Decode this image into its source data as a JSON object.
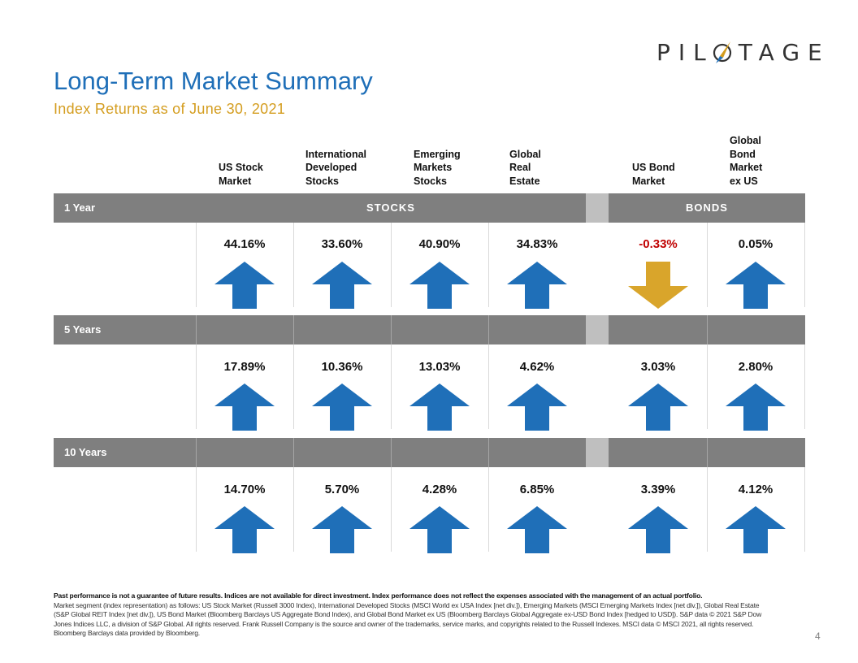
{
  "brand": {
    "logo_text": "PILOTAGE",
    "accent": "#1f6fb8",
    "gold": "#d49d1f"
  },
  "header": {
    "title": "Long-Term Market Summary",
    "subtitle": "Index Returns as of June 30, 2021"
  },
  "columns": [
    {
      "label": "US Stock\nMarket"
    },
    {
      "label": "International\nDeveloped\nStocks"
    },
    {
      "label": "Emerging\nMarkets\nStocks"
    },
    {
      "label": "Global\nReal\nEstate"
    },
    {
      "label": "US Bond\nMarket"
    },
    {
      "label": "Global\nBond\nMarket\nex US"
    }
  ],
  "groups": {
    "stocks": "STOCKS",
    "bonds": "BONDS"
  },
  "periods": [
    {
      "label": "1 Year",
      "values": [
        "44.16%",
        "33.60%",
        "40.90%",
        "34.83%",
        "-0.33%",
        "0.05%"
      ],
      "directions": [
        "up",
        "up",
        "up",
        "up",
        "down",
        "up"
      ]
    },
    {
      "label": "5 Years",
      "values": [
        "17.89%",
        "10.36%",
        "13.03%",
        "4.62%",
        "3.03%",
        "2.80%"
      ],
      "directions": [
        "up",
        "up",
        "up",
        "up",
        "up",
        "up"
      ]
    },
    {
      "label": "10 Years",
      "values": [
        "14.70%",
        "5.70%",
        "4.28%",
        "6.85%",
        "3.39%",
        "4.12%"
      ],
      "directions": [
        "up",
        "up",
        "up",
        "up",
        "up",
        "up"
      ]
    }
  ],
  "colors": {
    "up_arrow": "#1f6fb8",
    "down_arrow": "#d9a52b",
    "negative_text": "#c00000",
    "band": "#7f7f7f"
  },
  "footer": {
    "disclaimer": "Past performance is not a guarantee of future results. Indices are not available for direct investment. Index performance does not reflect the expenses associated with the management of an actual portfolio.",
    "notes": "Market segment (index representation) as follows: US Stock Market (Russell 3000 Index), International Developed Stocks (MSCI World ex USA Index [net div.]), Emerging Markets (MSCI Emerging Markets Index [net div.]), Global Real Estate (S&P Global REIT Index [net div.]), US Bond Market (Bloomberg Barclays US Aggregate Bond Index), and Global Bond Market ex US (Bloomberg Barclays Global Aggregate ex-USD Bond Index [hedged to USD]). S&P data © 2021 S&P Dow Jones Indices LLC, a division of S&P Global. All rights reserved. Frank Russell Company is the source and owner of the trademarks, service marks, and copyrights related to the Russell Indexes. MSCI data © MSCI 2021, all rights reserved. Bloomberg Barclays data provided by Bloomberg."
  },
  "page_number": "4"
}
